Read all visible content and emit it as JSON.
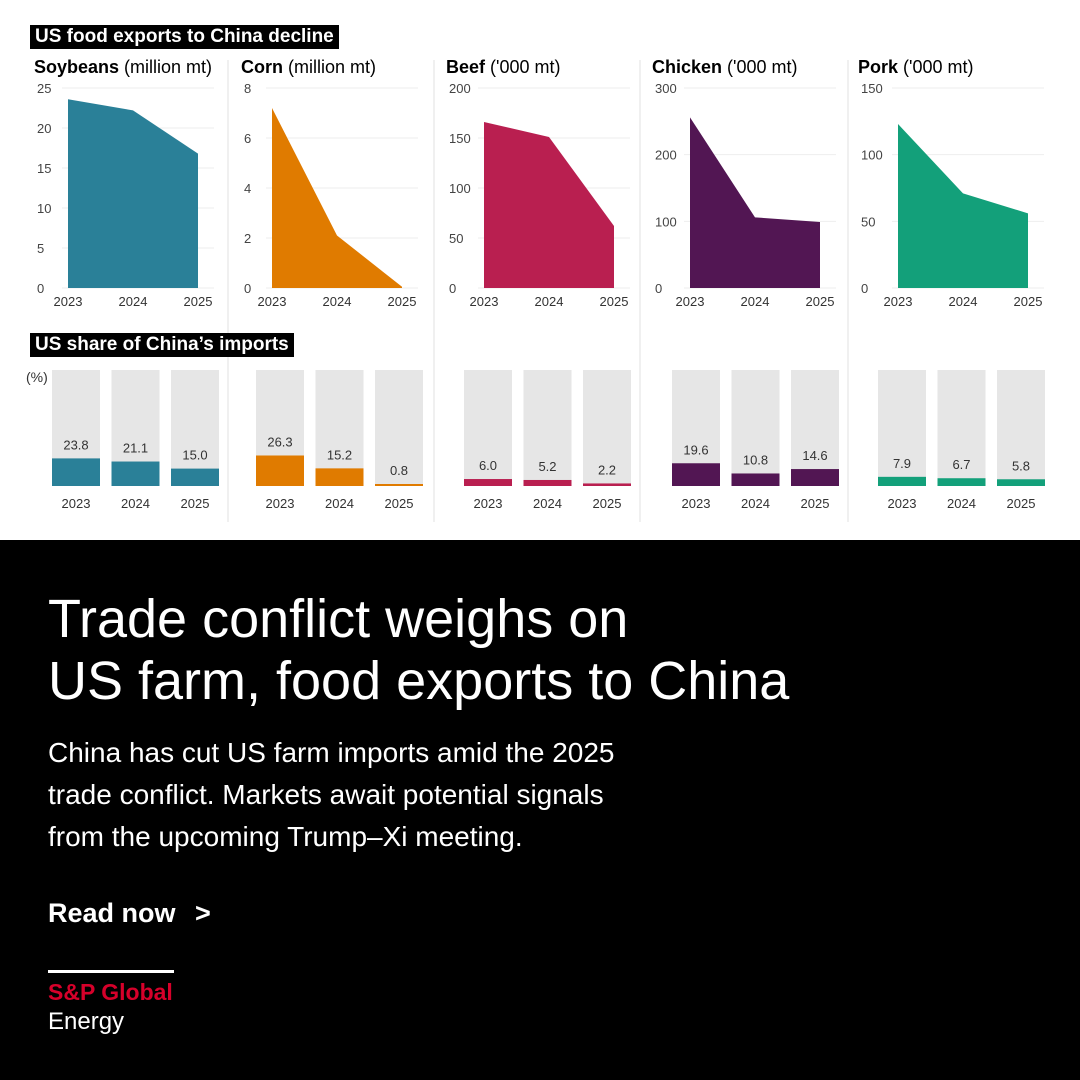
{
  "headline": {
    "line1": "Trade conflict weighs on",
    "line2": "US farm, food exports to China"
  },
  "subtitle": {
    "line1": "China has cut US farm imports amid the 2025",
    "line2": "trade conflict. Markets await potential signals",
    "line3": "from the upcoming Trump–Xi meeting."
  },
  "cta": {
    "label": "Read now",
    "arrow": ">"
  },
  "brand": {
    "name": "S&P Global",
    "division": "Energy",
    "accent_color": "#d6002a"
  },
  "colors": {
    "background_bottom": "#000000",
    "bar_track": "#e6e6e6",
    "grid": "#eeeeee"
  },
  "chart_data": [
    {
      "type": "area",
      "section_label": "US food exports to China decline",
      "panels": [
        {
          "name": "Soybeans",
          "unit": "(million mt)",
          "color": "#2a8098",
          "x": [
            "2023",
            "2024",
            "2025"
          ],
          "values": [
            23.6,
            22.2,
            16.8
          ],
          "yticks": [
            "0",
            "5",
            "10",
            "15",
            "20",
            "25"
          ],
          "ylim": [
            0,
            25
          ]
        },
        {
          "name": "Corn",
          "unit": "(million mt)",
          "color": "#e07b00",
          "x": [
            "2023",
            "2024",
            "2025"
          ],
          "values": [
            7.2,
            2.1,
            0.05
          ],
          "yticks": [
            "0",
            "2",
            "4",
            "6",
            "8"
          ],
          "ylim": [
            0,
            8
          ]
        },
        {
          "name": "Beef",
          "unit": "('000 mt)",
          "color": "#b91f50",
          "x": [
            "2023",
            "2024",
            "2025"
          ],
          "values": [
            166,
            151,
            62
          ],
          "yticks": [
            "0",
            "50",
            "100",
            "150",
            "200"
          ],
          "ylim": [
            0,
            200
          ]
        },
        {
          "name": "Chicken",
          "unit": "('000 mt)",
          "color": "#521653",
          "x": [
            "2023",
            "2024",
            "2025"
          ],
          "values": [
            256,
            106,
            99
          ],
          "yticks": [
            "0",
            "100",
            "200",
            "300"
          ],
          "ylim": [
            0,
            300
          ]
        },
        {
          "name": "Pork",
          "unit": "('000 mt)",
          "color": "#13a07a",
          "x": [
            "2023",
            "2024",
            "2025"
          ],
          "values": [
            123,
            71,
            56
          ],
          "yticks": [
            "0",
            "50",
            "100",
            "150"
          ],
          "ylim": [
            0,
            150
          ]
        }
      ]
    },
    {
      "type": "bar",
      "section_label": "US share of China’s imports",
      "unit_label": "(%)",
      "ylim": [
        0,
        100
      ],
      "panels": [
        {
          "name": "Soybeans",
          "color": "#2a8098",
          "x": [
            "2023",
            "2024",
            "2025"
          ],
          "values": [
            23.8,
            21.1,
            15.0
          ],
          "labels": [
            "23.8",
            "21.1",
            "15.0"
          ]
        },
        {
          "name": "Corn",
          "color": "#e07b00",
          "x": [
            "2023",
            "2024",
            "2025"
          ],
          "values": [
            26.3,
            15.2,
            0.8
          ],
          "labels": [
            "26.3",
            "15.2",
            "0.8"
          ]
        },
        {
          "name": "Beef",
          "color": "#b91f50",
          "x": [
            "2023",
            "2024",
            "2025"
          ],
          "values": [
            6.0,
            5.2,
            2.2
          ],
          "labels": [
            "6.0",
            "5.2",
            "2.2"
          ]
        },
        {
          "name": "Chicken",
          "color": "#521653",
          "x": [
            "2023",
            "2024",
            "2025"
          ],
          "values": [
            19.6,
            10.8,
            14.6
          ],
          "labels": [
            "19.6",
            "10.8",
            "14.6"
          ]
        },
        {
          "name": "Pork",
          "color": "#13a07a",
          "x": [
            "2023",
            "2024",
            "2025"
          ],
          "values": [
            7.9,
            6.7,
            5.8
          ],
          "labels": [
            "7.9",
            "6.7",
            "5.8"
          ]
        }
      ]
    }
  ]
}
